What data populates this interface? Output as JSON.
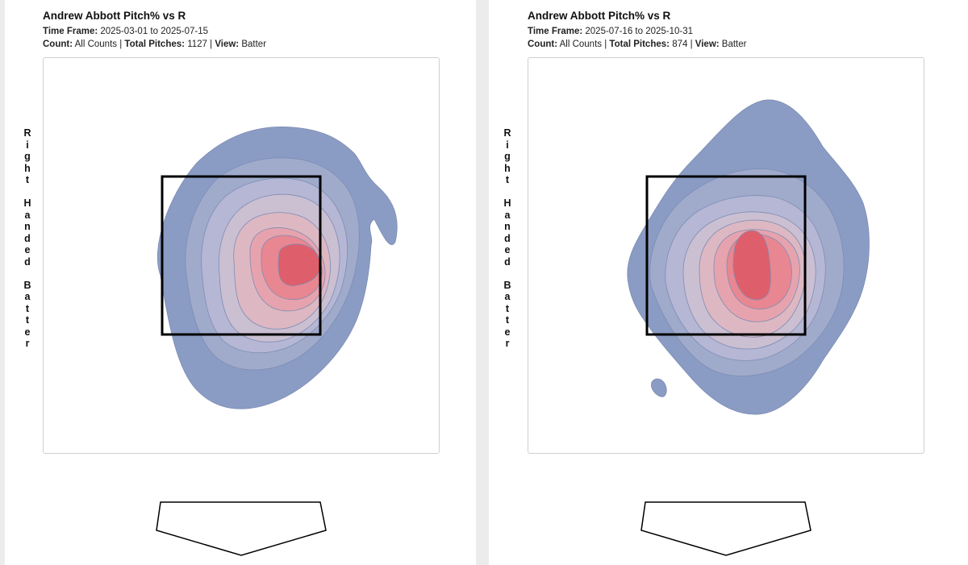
{
  "chart_data": [
    {
      "type": "heatmap",
      "title": "Andrew Abbott Pitch% vs R",
      "time_frame_label": "Time Frame:",
      "time_frame": "2025-03-01 to 2025-07-15",
      "count_label": "Count:",
      "count": "All Counts",
      "total_pitches_label": "Total Pitches:",
      "total_pitches": "1127",
      "view_label": "View:",
      "view": "Batter",
      "ylabel": "Right Handed Batter",
      "colors": [
        "#8a9cc4",
        "#a0abcc",
        "#b5b7d4",
        "#cbbfd2",
        "#ddb8c2",
        "#e6a3ae",
        "#e88791",
        "#de5f6b"
      ]
    },
    {
      "type": "heatmap",
      "title": "Andrew Abbott Pitch% vs R",
      "time_frame_label": "Time Frame:",
      "time_frame": "2025-07-16 to 2025-10-31",
      "count_label": "Count:",
      "count": "All Counts",
      "total_pitches_label": "Total Pitches:",
      "total_pitches": "874",
      "view_label": "View:",
      "view": "Batter",
      "ylabel": "Right Handed Batter",
      "colors": [
        "#8a9cc4",
        "#a0abcc",
        "#b5b7d4",
        "#cbbfd2",
        "#ddb8c2",
        "#e6a3ae",
        "#e88791",
        "#de5f6b"
      ]
    }
  ]
}
